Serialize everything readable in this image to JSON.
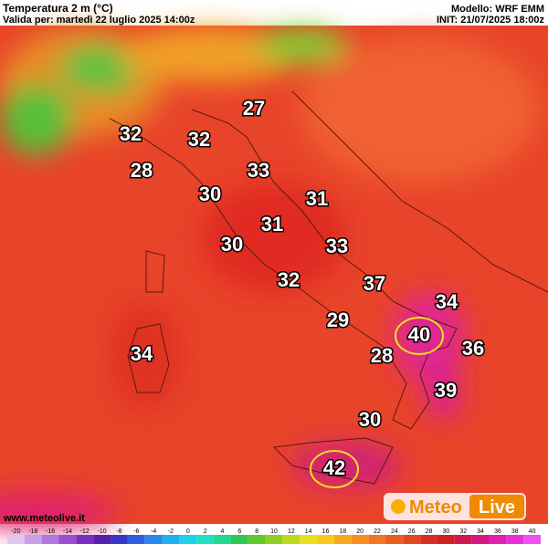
{
  "header": {
    "title": "Temperatura 2 m (°C)",
    "valid": "Valida per: martedì 22 luglio 2025 14:00z",
    "model": "Modello: WRF EMM",
    "init": "INIT: 21/07/2025 18:00z"
  },
  "labels": [
    27,
    32,
    32,
    28,
    33,
    30,
    31,
    31,
    30,
    33,
    32,
    37,
    34,
    29,
    40,
    36,
    34,
    28,
    39,
    30,
    42
  ],
  "legend": {
    "values": [
      -20,
      -18,
      -16,
      -14,
      -12,
      -10,
      -8,
      -6,
      -4,
      -2,
      0,
      2,
      4,
      6,
      8,
      10,
      12,
      14,
      16,
      18,
      20,
      22,
      24,
      26,
      28,
      30,
      32,
      34,
      36,
      38,
      40
    ],
    "colors": [
      "#e0c8f0",
      "#c8a0e8",
      "#b078e0",
      "#9850d0",
      "#7830c0",
      "#5820b0",
      "#3838c8",
      "#3060e0",
      "#2888f0",
      "#20b0f0",
      "#20d0e8",
      "#20e0c0",
      "#20d890",
      "#30c850",
      "#60c830",
      "#90d020",
      "#c0d820",
      "#e8e020",
      "#f8c820",
      "#f8a820",
      "#f89020",
      "#f07820",
      "#e86020",
      "#e04820",
      "#d83020",
      "#d02020",
      "#d01850",
      "#d81880",
      "#e020b0",
      "#e830d8",
      "#f050f0"
    ]
  },
  "footer": {
    "site": "www.meteolive.it",
    "logo_a": "Meteo",
    "logo_b": "Live"
  }
}
